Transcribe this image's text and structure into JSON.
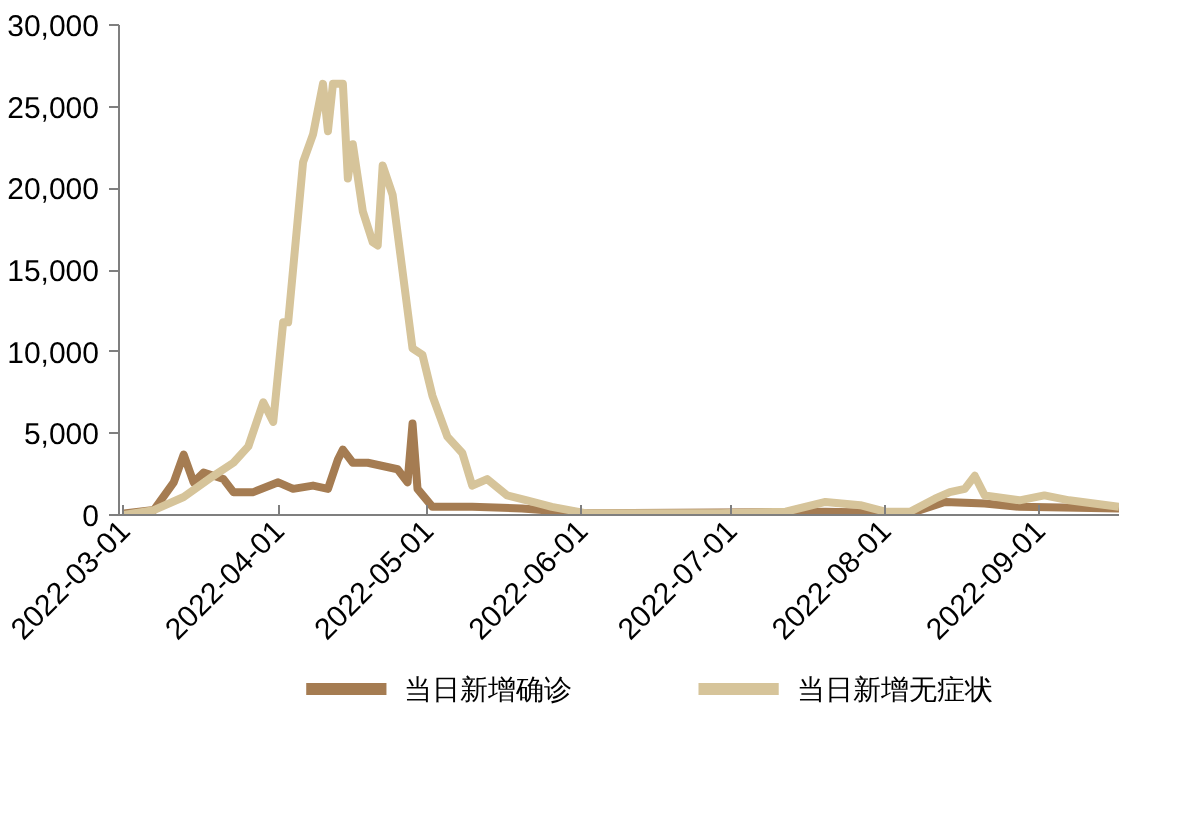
{
  "chart_data": {
    "type": "line",
    "xlim": [
      "2022-02-28",
      "2022-09-17"
    ],
    "ylim": [
      0,
      30000
    ],
    "xticks": [
      "2022-03-01",
      "2022-04-01",
      "2022-05-01",
      "2022-06-01",
      "2022-07-01",
      "2022-08-01",
      "2022-09-01"
    ],
    "yticks": [
      {
        "value": 0,
        "label": "0"
      },
      {
        "value": 5000,
        "label": "5,000"
      },
      {
        "value": 10000,
        "label": "10,000"
      },
      {
        "value": 15000,
        "label": "15,000"
      },
      {
        "value": 20000,
        "label": "20,000"
      },
      {
        "value": 25000,
        "label": "25,000"
      },
      {
        "value": 30000,
        "label": "30,000"
      }
    ],
    "grid": false,
    "legend": "bottom",
    "line_style": "solid",
    "marker": "none",
    "series": [
      {
        "name": "当日新增确诊",
        "color": "#a57c52",
        "x": [
          "2022-03-01",
          "2022-03-07",
          "2022-03-11",
          "2022-03-13",
          "2022-03-15",
          "2022-03-17",
          "2022-03-21",
          "2022-03-23",
          "2022-03-27",
          "2022-04-01",
          "2022-04-04",
          "2022-04-08",
          "2022-04-11",
          "2022-04-13",
          "2022-04-14",
          "2022-04-16",
          "2022-04-19",
          "2022-04-22",
          "2022-04-25",
          "2022-04-27",
          "2022-04-28",
          "2022-04-29",
          "2022-05-02",
          "2022-05-10",
          "2022-05-20",
          "2022-06-02",
          "2022-07-20",
          "2022-08-06",
          "2022-08-13",
          "2022-08-21",
          "2022-08-28",
          "2022-09-17"
        ],
        "values": [
          100,
          300,
          2000,
          3700,
          2000,
          2600,
          2200,
          1400,
          1400,
          2000,
          1600,
          1800,
          1600,
          3400,
          4000,
          3200,
          3200,
          3000,
          2800,
          2000,
          5600,
          1600,
          500,
          500,
          400,
          100,
          200,
          100,
          800,
          700,
          500,
          400
        ]
      },
      {
        "name": "当日新增无症状",
        "color": "#d6c49a",
        "x": [
          "2022-03-01",
          "2022-03-07",
          "2022-03-13",
          "2022-03-19",
          "2022-03-23",
          "2022-03-26",
          "2022-03-29",
          "2022-03-31",
          "2022-04-02",
          "2022-04-03",
          "2022-04-06",
          "2022-04-08",
          "2022-04-10",
          "2022-04-11",
          "2022-04-12",
          "2022-04-14",
          "2022-04-15",
          "2022-04-16",
          "2022-04-18",
          "2022-04-20",
          "2022-04-21",
          "2022-04-22",
          "2022-04-24",
          "2022-04-28",
          "2022-04-30",
          "2022-05-02",
          "2022-05-05",
          "2022-05-08",
          "2022-05-10",
          "2022-05-13",
          "2022-05-17",
          "2022-05-21",
          "2022-05-26",
          "2022-06-02",
          "2022-06-29",
          "2022-07-12",
          "2022-07-20",
          "2022-07-27",
          "2022-08-01",
          "2022-08-06",
          "2022-08-11",
          "2022-08-14",
          "2022-08-17",
          "2022-08-19",
          "2022-08-21",
          "2022-08-28",
          "2022-09-02",
          "2022-09-07",
          "2022-09-17"
        ],
        "values": [
          0,
          300,
          1100,
          2400,
          3200,
          4200,
          6900,
          5700,
          11800,
          11800,
          21600,
          23300,
          26400,
          23500,
          26400,
          26400,
          20600,
          22700,
          18600,
          16700,
          16500,
          21400,
          19600,
          10200,
          9800,
          7300,
          4800,
          3800,
          1800,
          2200,
          1200,
          900,
          500,
          100,
          100,
          200,
          800,
          600,
          200,
          200,
          1000,
          1400,
          1600,
          2400,
          1200,
          900,
          1200,
          900,
          500
        ]
      }
    ]
  }
}
